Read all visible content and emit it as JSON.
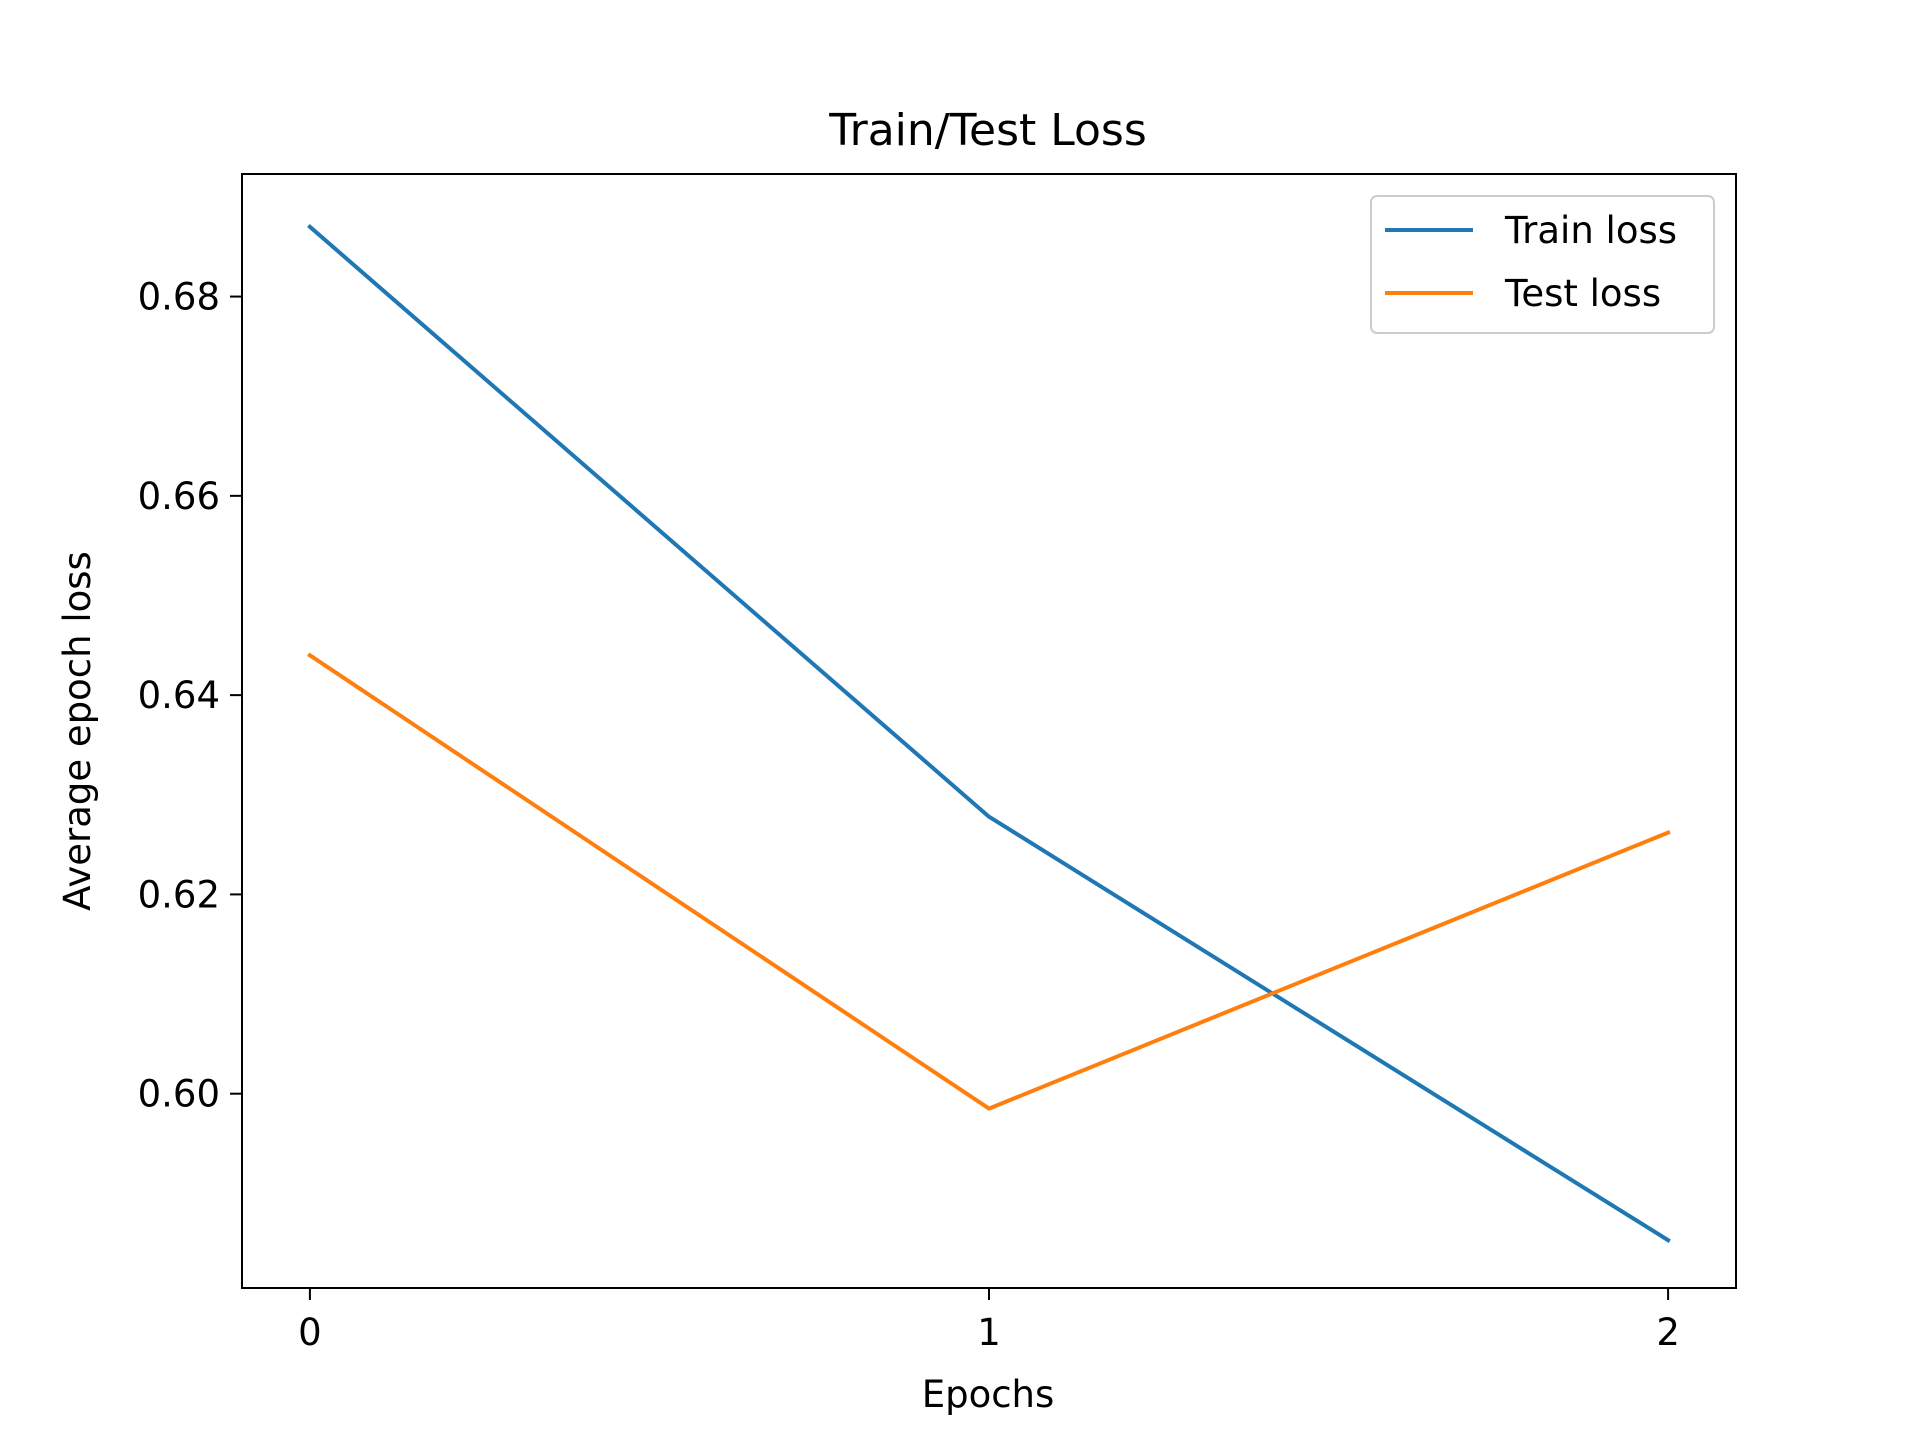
{
  "chart_data": {
    "type": "line",
    "title": "Train/Test Loss",
    "xlabel": "Epochs",
    "ylabel": "Average epoch loss",
    "x": [
      0,
      1,
      2
    ],
    "xlim": [
      -0.1,
      2.1
    ],
    "ylim": [
      0.5805,
      0.6923
    ],
    "xticks": [
      0,
      1,
      2
    ],
    "xtick_labels": [
      "0",
      "1",
      "2"
    ],
    "yticks": [
      0.6,
      0.62,
      0.64,
      0.66,
      0.68
    ],
    "ytick_labels": [
      "0.60",
      "0.62",
      "0.64",
      "0.66",
      "0.68"
    ],
    "grid": false,
    "legend_position": "top-right",
    "series": [
      {
        "name": "Train loss",
        "color": "#1f77b4",
        "values": [
          0.687,
          0.6278,
          0.5853
        ]
      },
      {
        "name": "Test loss",
        "color": "#ff7f0e",
        "values": [
          0.644,
          0.5985,
          0.6262
        ]
      }
    ]
  }
}
